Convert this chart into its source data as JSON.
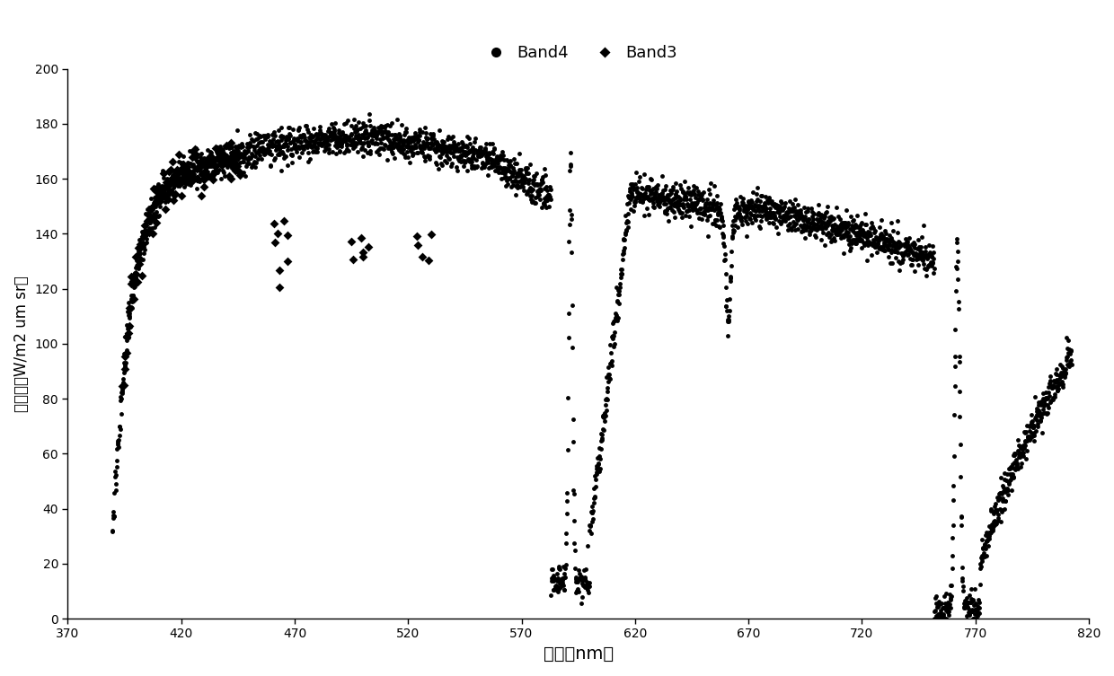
{
  "xlabel": "波长（nm）",
  "ylabel": "辐照度（W/m2 um sr）",
  "xlim": [
    370,
    820
  ],
  "ylim": [
    0,
    200
  ],
  "xticks": [
    370,
    420,
    470,
    520,
    570,
    620,
    670,
    720,
    770,
    820
  ],
  "yticks": [
    0,
    20,
    40,
    60,
    80,
    100,
    120,
    140,
    160,
    180,
    200
  ],
  "band4_label": "Band4",
  "band3_label": "Band3",
  "marker_color": "#000000",
  "background_color": "#ffffff",
  "marker_size_band4": 3.5,
  "marker_size_band3": 5,
  "seed": 42
}
